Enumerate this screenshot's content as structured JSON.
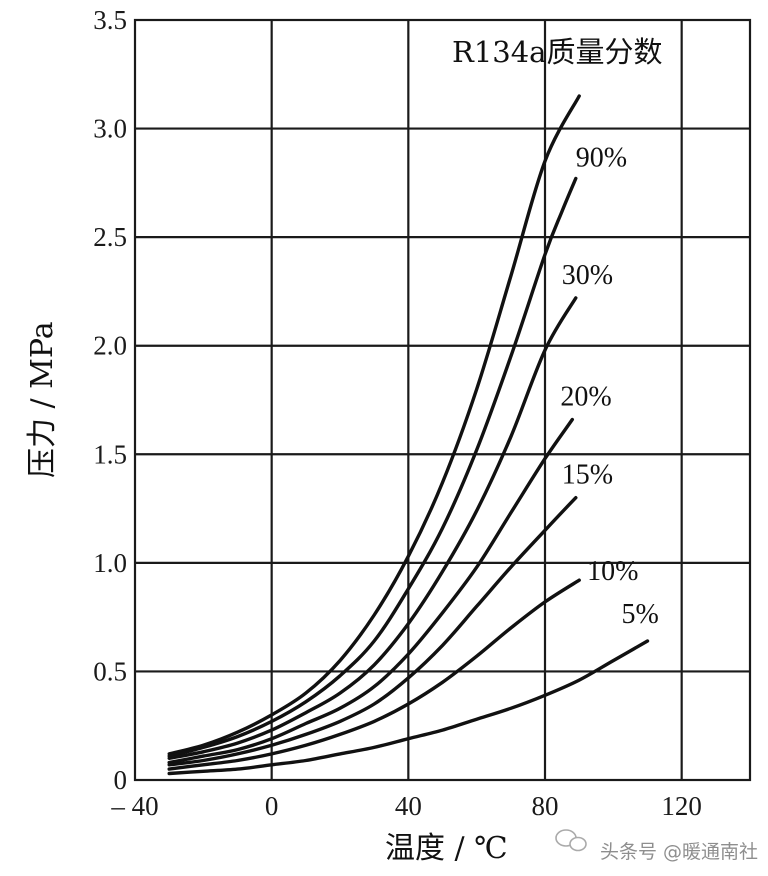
{
  "chart_data": {
    "type": "line",
    "title": "R134a质量分数",
    "xlabel": "温度 / ℃",
    "ylabel": "压力 / MPa",
    "xlim": [
      -40,
      140
    ],
    "ylim": [
      0,
      3.5
    ],
    "grid": true,
    "x_ticks": [
      {
        "value": -40,
        "label": "– 40"
      },
      {
        "value": 0,
        "label": "0"
      },
      {
        "value": 40,
        "label": "40"
      },
      {
        "value": 80,
        "label": "80"
      },
      {
        "value": 120,
        "label": "120"
      }
    ],
    "y_ticks": [
      {
        "value": 0,
        "label": "0"
      },
      {
        "value": 0.5,
        "label": "0.5"
      },
      {
        "value": 1.0,
        "label": "1.0"
      },
      {
        "value": 1.5,
        "label": "1.5"
      },
      {
        "value": 2.0,
        "label": "2.0"
      },
      {
        "value": 2.5,
        "label": "2.5"
      },
      {
        "value": 3.0,
        "label": "3.0"
      },
      {
        "value": 3.5,
        "label": "3.5"
      }
    ],
    "series": [
      {
        "name": "R134a",
        "label": "",
        "x": [
          -30,
          -20,
          -10,
          0,
          10,
          20,
          30,
          40,
          50,
          60,
          70,
          80,
          90
        ],
        "y": [
          0.12,
          0.16,
          0.22,
          0.3,
          0.4,
          0.55,
          0.76,
          1.03,
          1.37,
          1.8,
          2.32,
          2.85,
          3.15
        ]
      },
      {
        "name": "90%",
        "label": "90%",
        "x": [
          -30,
          -20,
          -10,
          0,
          10,
          20,
          30,
          40,
          50,
          60,
          70,
          80,
          85,
          89
        ],
        "y": [
          0.11,
          0.15,
          0.2,
          0.27,
          0.36,
          0.48,
          0.64,
          0.88,
          1.16,
          1.52,
          1.95,
          2.42,
          2.62,
          2.77
        ]
      },
      {
        "name": "30%",
        "label": "30%",
        "x": [
          -30,
          -20,
          -10,
          0,
          10,
          20,
          30,
          40,
          50,
          60,
          70,
          80,
          89
        ],
        "y": [
          0.1,
          0.13,
          0.17,
          0.23,
          0.31,
          0.4,
          0.53,
          0.72,
          0.96,
          1.24,
          1.58,
          1.98,
          2.22
        ]
      },
      {
        "name": "20%",
        "label": "20%",
        "x": [
          -30,
          -20,
          -10,
          0,
          10,
          20,
          30,
          40,
          50,
          60,
          70,
          80,
          88
        ],
        "y": [
          0.08,
          0.11,
          0.14,
          0.19,
          0.26,
          0.33,
          0.43,
          0.58,
          0.77,
          0.98,
          1.23,
          1.48,
          1.66
        ]
      },
      {
        "name": "15%",
        "label": "15%",
        "x": [
          -30,
          -20,
          -10,
          0,
          10,
          20,
          30,
          40,
          50,
          60,
          70,
          80,
          89
        ],
        "y": [
          0.07,
          0.09,
          0.12,
          0.16,
          0.21,
          0.27,
          0.35,
          0.47,
          0.62,
          0.8,
          0.98,
          1.15,
          1.3
        ]
      },
      {
        "name": "10%",
        "label": "10%",
        "x": [
          -30,
          -20,
          -10,
          0,
          10,
          20,
          30,
          40,
          50,
          60,
          70,
          80,
          90
        ],
        "y": [
          0.05,
          0.07,
          0.09,
          0.12,
          0.16,
          0.21,
          0.27,
          0.35,
          0.45,
          0.57,
          0.7,
          0.82,
          0.92
        ]
      },
      {
        "name": "5%",
        "label": "5%",
        "x": [
          -30,
          -20,
          -10,
          0,
          10,
          20,
          30,
          40,
          50,
          60,
          70,
          80,
          90,
          100,
          110
        ],
        "y": [
          0.03,
          0.04,
          0.05,
          0.07,
          0.09,
          0.12,
          0.15,
          0.19,
          0.23,
          0.28,
          0.33,
          0.39,
          0.46,
          0.55,
          0.64
        ]
      }
    ]
  },
  "watermark": "头条号 @暖通南社"
}
